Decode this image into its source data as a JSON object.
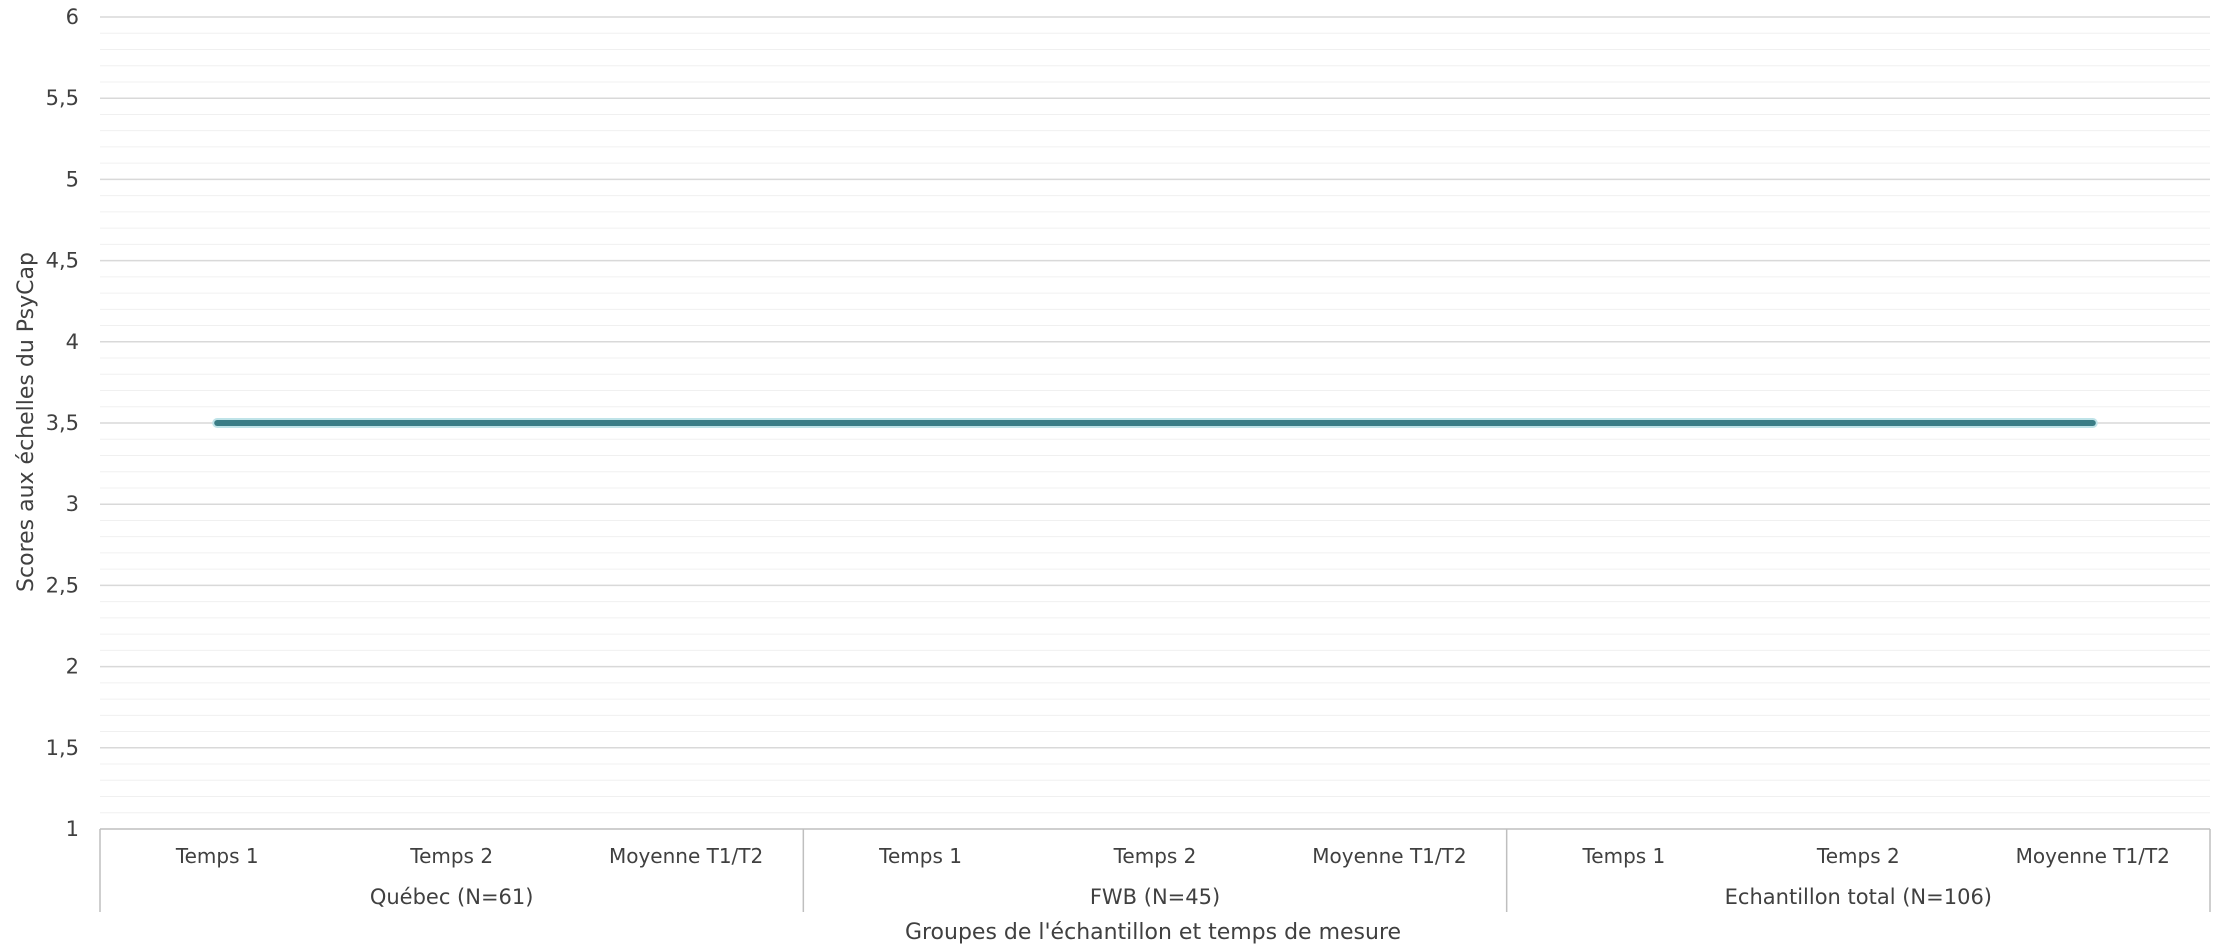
{
  "chart_data": {
    "type": "line",
    "title": "",
    "xlabel": "Groupes de l'échantillon et temps de mesure",
    "ylabel": "Scores aux échelles du PsyCap",
    "ylim": [
      1,
      6
    ],
    "y_ticks": [
      "1",
      "1,5",
      "2",
      "2,5",
      "3",
      "3,5",
      "4",
      "4,5",
      "5",
      "5,5",
      "6"
    ],
    "major_grid_step": 0.5,
    "minor_grid_step": 0.1,
    "grid": true,
    "legend": "none",
    "groups": [
      {
        "label": "Québec (N=61)",
        "categories": [
          "Temps 1",
          "Temps 2",
          "Moyenne T1/T2"
        ]
      },
      {
        "label": "FWB (N=45)",
        "categories": [
          "Temps 1",
          "Temps 2",
          "Moyenne T1/T2"
        ]
      },
      {
        "label": "Echantillon total (N=106)",
        "categories": [
          "Temps 1",
          "Temps 2",
          "Moyenne T1/T2"
        ]
      }
    ],
    "series": [
      {
        "color": "#3a7d86",
        "values": [
          3.5,
          3.5,
          3.5,
          3.5,
          3.5,
          3.5,
          3.5,
          3.5,
          3.5
        ]
      }
    ]
  },
  "colors": {
    "major_grid": "#d9d9d9",
    "minor_grid": "#f0f0f0",
    "axis": "#bfbfbf",
    "text": "#404040"
  }
}
